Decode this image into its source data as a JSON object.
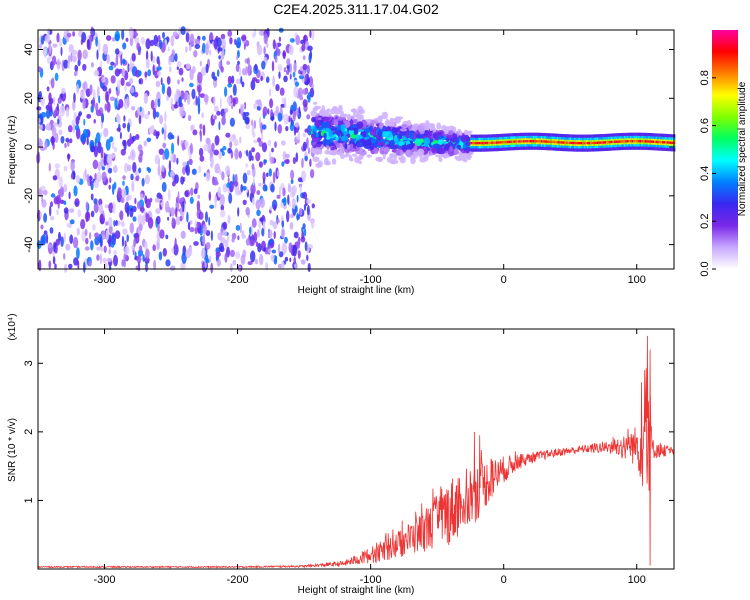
{
  "figure": {
    "title": "C2E4.2025.311.17.04.G02"
  },
  "chart_data": [
    {
      "type": "heatmap",
      "xlabel": "Height of straight line (km)",
      "ylabel": "Frequency (Hz)",
      "xlim": [
        -350,
        128
      ],
      "ylim": [
        -50,
        48
      ],
      "xticks": [
        -300,
        -200,
        -100,
        0,
        100
      ],
      "yticks": [
        -40,
        -20,
        0,
        20,
        40
      ],
      "colorbar": {
        "label": "Normalized spectral amplitude",
        "range": [
          0,
          1
        ],
        "ticks": [
          "0.0",
          "0.2",
          "0.4",
          "0.6",
          "0.8"
        ],
        "colors": [
          "#ffffff",
          "#c8a8ff",
          "#7a28e8",
          "#3a28f0",
          "#0080ff",
          "#00ffff",
          "#00ff60",
          "#80ff00",
          "#ffff00",
          "#ff8000",
          "#ff0000",
          "#ff00a0"
        ]
      },
      "regions": [
        {
          "x": [
            -350,
            -143
          ],
          "description_amp": 0.2,
          "freq_range": [
            -50,
            48
          ]
        },
        {
          "x": [
            -143,
            -25
          ],
          "center_freq_start": 6,
          "center_freq_end": 1,
          "amp_peak": 0.45
        },
        {
          "x": [
            -25,
            128
          ],
          "center_freq": 2,
          "amp_peak": 0.95
        }
      ]
    },
    {
      "type": "line",
      "xlabel": "Height of straight line (km)",
      "ylabel": "SNR (10 * v/v)",
      "yscale_label": "(x10⁴)",
      "xlim": [
        -350,
        128
      ],
      "ylim": [
        0,
        3.5
      ],
      "xticks": [
        -300,
        -200,
        -100,
        0,
        100
      ],
      "yticks": [
        1,
        2,
        3
      ],
      "series": [
        {
          "color": "#ee3333",
          "envelope": {
            "x": [
              -350,
              -200,
              -150,
              -120,
              -100,
              -80,
              -60,
              -40,
              -20,
              -10,
              0,
              10,
              20,
              40,
              60,
              80,
              100,
              105,
              108,
              112,
              128
            ],
            "y": [
              0.03,
              0.03,
              0.04,
              0.08,
              0.2,
              0.35,
              0.55,
              0.85,
              1.15,
              1.3,
              1.45,
              1.55,
              1.62,
              1.7,
              1.75,
              1.78,
              1.8,
              1.9,
              2.2,
              1.75,
              1.72
            ],
            "noise": [
              0.01,
              0.01,
              0.015,
              0.04,
              0.12,
              0.2,
              0.3,
              0.5,
              0.45,
              0.3,
              0.2,
              0.12,
              0.08,
              0.06,
              0.06,
              0.1,
              0.3,
              0.8,
              1.3,
              0.15,
              0.05
            ]
          },
          "peaks": [
            {
              "x": 108,
              "y": 3.4
            },
            {
              "x": 110,
              "y": 3.2
            },
            {
              "x": 106,
              "y": 2.9
            },
            {
              "x": -22,
              "y": 2.0
            },
            {
              "x": -18,
              "y": 1.95
            },
            {
              "x": 110,
              "y": 0.05
            }
          ]
        }
      ]
    }
  ]
}
